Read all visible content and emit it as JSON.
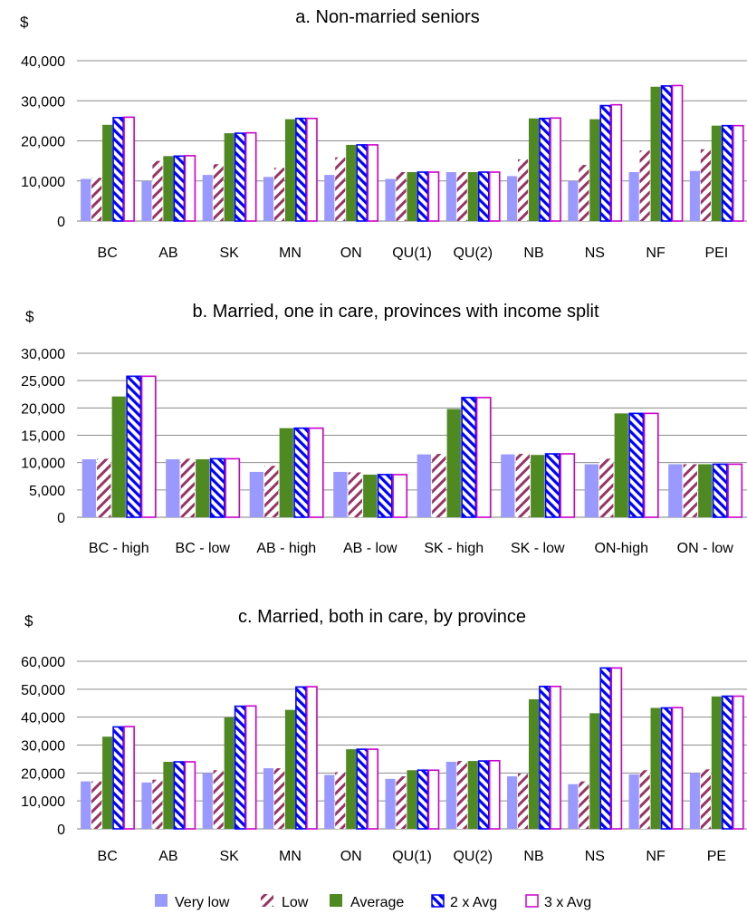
{
  "series_names": [
    "Very low",
    "Low",
    "Average",
    "2 x Avg",
    "3 x Avg"
  ],
  "series_colors": {
    "very_low": "#9999ff",
    "low_stripe": "#993366",
    "average": "#4e8a21",
    "avg2_stripe": "#0000ff",
    "avg3_outline": "#cc00cc"
  },
  "chart_data": [
    {
      "type": "bar",
      "title": "a. Non-married seniors",
      "ylabel": "$",
      "ylim": [
        0,
        40000
      ],
      "yticks": [
        "0",
        "10,000",
        "20,000",
        "30,000",
        "40,000"
      ],
      "categories": [
        "BC",
        "AB",
        "SK",
        "MN",
        "ON",
        "QU(1)",
        "QU(2)",
        "NB",
        "NS",
        "NF",
        "PEI"
      ],
      "series": [
        {
          "name": "Very low",
          "values": [
            10500,
            10000,
            11500,
            11000,
            11500,
            10500,
            12200,
            11200,
            10000,
            12200,
            12500
          ]
        },
        {
          "name": "Low",
          "values": [
            10800,
            15000,
            14200,
            13300,
            15900,
            12200,
            12200,
            15400,
            14000,
            17600,
            17900
          ]
        },
        {
          "name": "Average",
          "values": [
            24000,
            16200,
            21900,
            25400,
            19000,
            12200,
            12200,
            25600,
            25400,
            33500,
            23800
          ]
        },
        {
          "name": "2 x Avg",
          "values": [
            25800,
            16200,
            21900,
            25600,
            19000,
            12200,
            12200,
            25600,
            28800,
            33700,
            23800
          ]
        },
        {
          "name": "3 x Avg",
          "values": [
            25900,
            16300,
            22000,
            25600,
            19000,
            12200,
            12200,
            25700,
            29000,
            33800,
            23800
          ]
        }
      ]
    },
    {
      "type": "bar",
      "title": "b. Married, one in care, provinces with income split",
      "ylabel": "$",
      "ylim": [
        0,
        30000
      ],
      "yticks": [
        "0",
        "5,000",
        "10,000",
        "15,000",
        "20,000",
        "25,000",
        "30,000"
      ],
      "categories": [
        "BC - high",
        "BC - low",
        "AB - high",
        "AB - low",
        "SK - high",
        "SK - low",
        "ON-high",
        "ON - low"
      ],
      "series": [
        {
          "name": "Very low",
          "values": [
            10600,
            10600,
            8300,
            8300,
            11500,
            11500,
            9700,
            9700
          ]
        },
        {
          "name": "Low",
          "values": [
            10700,
            10700,
            9400,
            8200,
            11600,
            11600,
            10700,
            9700
          ]
        },
        {
          "name": "Average",
          "values": [
            22100,
            10600,
            16300,
            7800,
            19800,
            11400,
            19000,
            9700
          ]
        },
        {
          "name": "2 x Avg",
          "values": [
            25800,
            10700,
            16300,
            7800,
            21900,
            11600,
            19000,
            9700
          ]
        },
        {
          "name": "3 x Avg",
          "values": [
            25800,
            10700,
            16300,
            7800,
            21900,
            11600,
            19000,
            9700
          ]
        }
      ]
    },
    {
      "type": "bar",
      "title": "c. Married, both in care, by province",
      "ylabel": "$",
      "ylim": [
        0,
        60000
      ],
      "yticks": [
        "0",
        "10,000",
        "20,000",
        "30,000",
        "40,000",
        "50,000",
        "60,000"
      ],
      "categories": [
        "BC",
        "AB",
        "SK",
        "MN",
        "ON",
        "QU(1)",
        "QU(2)",
        "NB",
        "NS",
        "NF",
        "PE"
      ],
      "series": [
        {
          "name": "Very low",
          "values": [
            17000,
            16600,
            20000,
            21700,
            19300,
            17900,
            24000,
            18800,
            16000,
            19500,
            20000
          ]
        },
        {
          "name": "Low",
          "values": [
            17000,
            17600,
            21000,
            21700,
            20300,
            18800,
            24300,
            19800,
            17000,
            21000,
            21300
          ]
        },
        {
          "name": "Average",
          "values": [
            33000,
            24000,
            39900,
            42600,
            28500,
            21000,
            24300,
            46400,
            41400,
            43300,
            47400
          ]
        },
        {
          "name": "2 x Avg",
          "values": [
            36500,
            24000,
            43900,
            50800,
            28500,
            21000,
            24300,
            51000,
            57600,
            43300,
            47500
          ]
        },
        {
          "name": "3 x Avg",
          "values": [
            36600,
            24000,
            44000,
            50900,
            28500,
            21000,
            24400,
            51000,
            57600,
            43400,
            47500
          ]
        }
      ]
    }
  ]
}
